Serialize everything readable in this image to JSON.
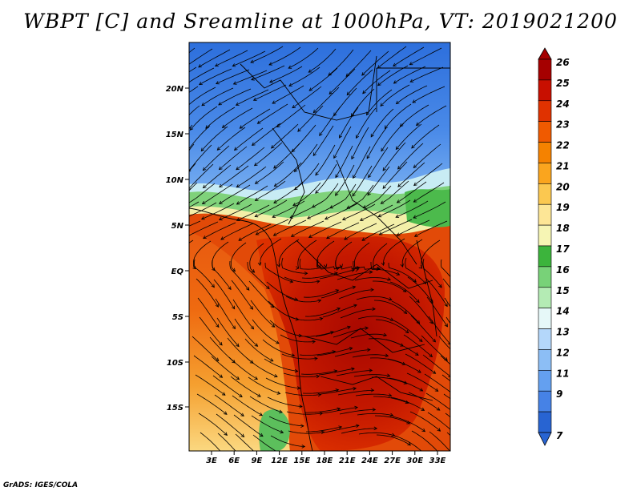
{
  "title": "WBPT [C] and Sreamline at 1000hPa, VT: 2019021200",
  "credit": "GrADS: IGES/COLA",
  "lat_ticks": [
    "20N",
    "15N",
    "10N",
    "5N",
    "EQ",
    "5S",
    "10S",
    "15S"
  ],
  "lon_ticks": [
    "3E",
    "6E",
    "9E",
    "12E",
    "15E",
    "18E",
    "21E",
    "24E",
    "27E",
    "30E",
    "33E"
  ],
  "colorbar": {
    "labels": [
      "26",
      "25",
      "24",
      "23",
      "22",
      "21",
      "20",
      "19",
      "18",
      "17",
      "16",
      "15",
      "14",
      "13",
      "12",
      "11",
      "9",
      "7"
    ],
    "colors": [
      "#a50000",
      "#c80f00",
      "#e03200",
      "#f05a00",
      "#f58200",
      "#faa51e",
      "#fbc850",
      "#fde696",
      "#f6f5b4",
      "#3cb43c",
      "#78d278",
      "#b4ebb4",
      "#e6f8f8",
      "#b4d7fa",
      "#8cbef5",
      "#64a0f0",
      "#4682e6",
      "#2864d2"
    ],
    "top_color": "#a50000",
    "bottom_color": "#2864d2"
  }
}
